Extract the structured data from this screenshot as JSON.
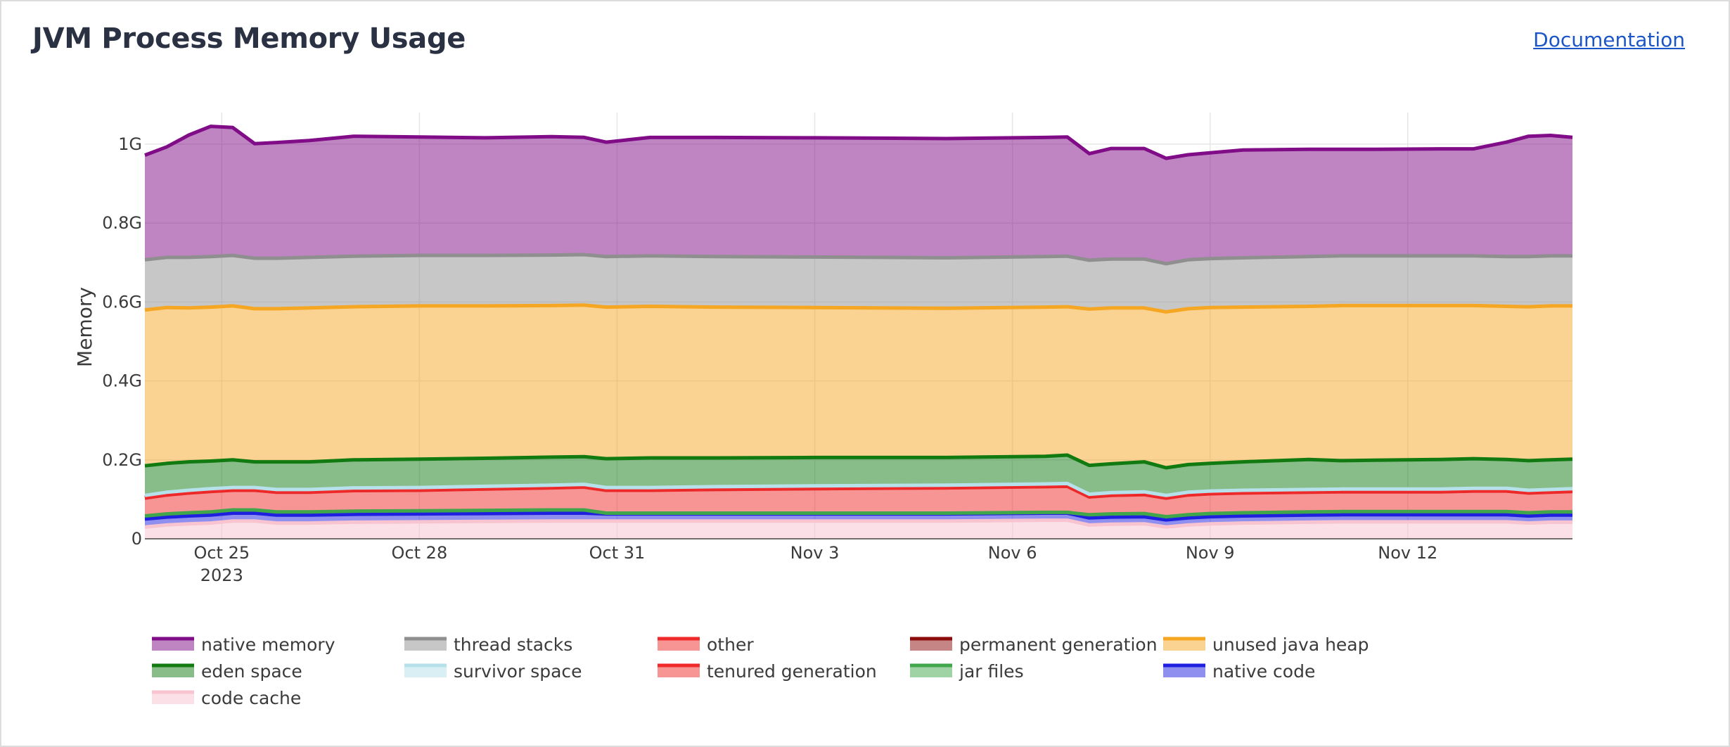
{
  "page": {
    "title": "JVM Process Memory Usage",
    "documentation_link": "Documentation"
  },
  "chart_data": {
    "type": "area",
    "stacked": true,
    "title": "",
    "xlabel": "",
    "ylabel": "Memory",
    "x_tick_labels": [
      {
        "date": "2023-10-25",
        "line1": "Oct 25",
        "line2": "2023"
      },
      {
        "date": "2023-10-28",
        "line1": "Oct 28",
        "line2": ""
      },
      {
        "date": "2023-10-31",
        "line1": "Oct 31",
        "line2": ""
      },
      {
        "date": "2023-11-03",
        "line1": "Nov 3",
        "line2": ""
      },
      {
        "date": "2023-11-06",
        "line1": "Nov 6",
        "line2": ""
      },
      {
        "date": "2023-11-09",
        "line1": "Nov 9",
        "line2": ""
      },
      {
        "date": "2023-11-12",
        "line1": "Nov 12",
        "line2": ""
      }
    ],
    "y_ticks": [
      {
        "value": 0,
        "label": "0"
      },
      {
        "value": 0.2,
        "label": "0.2G"
      },
      {
        "value": 0.4,
        "label": "0.4G"
      },
      {
        "value": 0.6,
        "label": "0.6G"
      },
      {
        "value": 0.8,
        "label": "0.8G"
      },
      {
        "value": 1.0,
        "label": "1G"
      }
    ],
    "xlim": [
      "2023-10-23 20:00",
      "2023-11-14 12:00"
    ],
    "ylim": [
      0,
      1.08
    ],
    "grid": true,
    "legend_position": "bottom",
    "x": [
      "2023-10-23 20:00",
      "2023-10-24 04:00",
      "2023-10-24 12:00",
      "2023-10-24 20:00",
      "2023-10-25 04:00",
      "2023-10-25 12:00",
      "2023-10-25 20:00",
      "2023-10-26 08:00",
      "2023-10-27 00:00",
      "2023-10-28 00:00",
      "2023-10-29 00:00",
      "2023-10-30 00:00",
      "2023-10-30 12:00",
      "2023-10-30 20:00",
      "2023-10-31 12:00",
      "2023-11-01 12:00",
      "2023-11-03 00:00",
      "2023-11-05 00:00",
      "2023-11-06 12:00",
      "2023-11-06 20:00",
      "2023-11-07 04:00",
      "2023-11-07 12:00",
      "2023-11-08 00:00",
      "2023-11-08 08:00",
      "2023-11-08 16:00",
      "2023-11-09 00:00",
      "2023-11-09 12:00",
      "2023-11-10 12:00",
      "2023-11-11 00:00",
      "2023-11-11 12:00",
      "2023-11-12 12:00",
      "2023-11-13 00:00",
      "2023-11-13 12:00",
      "2023-11-13 20:00",
      "2023-11-14 04:00",
      "2023-11-14 12:00"
    ],
    "series": [
      {
        "name": "code cache",
        "color": "#f8c4d0",
        "values": [
          0.03,
          0.035,
          0.038,
          0.04,
          0.045,
          0.045,
          0.04,
          0.04,
          0.042,
          0.043,
          0.044,
          0.045,
          0.045,
          0.045,
          0.045,
          0.045,
          0.045,
          0.045,
          0.047,
          0.047,
          0.035,
          0.037,
          0.038,
          0.03,
          0.035,
          0.038,
          0.04,
          0.042,
          0.043,
          0.043,
          0.043,
          0.043,
          0.043,
          0.04,
          0.042,
          0.042
        ]
      },
      {
        "name": "native code",
        "color": "#1f1fe0",
        "values": [
          0.02,
          0.02,
          0.02,
          0.02,
          0.02,
          0.02,
          0.02,
          0.02,
          0.02,
          0.02,
          0.02,
          0.02,
          0.02,
          0.018,
          0.018,
          0.018,
          0.018,
          0.018,
          0.018,
          0.018,
          0.018,
          0.018,
          0.018,
          0.018,
          0.018,
          0.018,
          0.018,
          0.018,
          0.018,
          0.018,
          0.018,
          0.018,
          0.018,
          0.018,
          0.018,
          0.018
        ]
      },
      {
        "name": "jar files",
        "color": "#3fa64b",
        "values": [
          0.008,
          0.008,
          0.008,
          0.008,
          0.008,
          0.008,
          0.008,
          0.008,
          0.008,
          0.008,
          0.008,
          0.008,
          0.008,
          0.002,
          0.002,
          0.002,
          0.002,
          0.002,
          0.002,
          0.002,
          0.008,
          0.008,
          0.008,
          0.008,
          0.008,
          0.008,
          0.008,
          0.008,
          0.008,
          0.008,
          0.008,
          0.008,
          0.008,
          0.008,
          0.008,
          0.008
        ]
      },
      {
        "name": "tenured generation",
        "color": "#f02a2a",
        "values": [
          0.045,
          0.048,
          0.05,
          0.052,
          0.05,
          0.05,
          0.05,
          0.05,
          0.052,
          0.052,
          0.054,
          0.056,
          0.058,
          0.058,
          0.058,
          0.06,
          0.062,
          0.064,
          0.065,
          0.066,
          0.045,
          0.047,
          0.048,
          0.047,
          0.05,
          0.05,
          0.05,
          0.05,
          0.05,
          0.05,
          0.05,
          0.052,
          0.052,
          0.05,
          0.05,
          0.052
        ]
      },
      {
        "name": "permanent generation",
        "color": "#8b0b0b",
        "values": [
          0.002,
          0.002,
          0.002,
          0.002,
          0.002,
          0.002,
          0.002,
          0.002,
          0.002,
          0.002,
          0.002,
          0.002,
          0.002,
          0.002,
          0.002,
          0.002,
          0.002,
          0.002,
          0.002,
          0.002,
          0.002,
          0.002,
          0.002,
          0.002,
          0.002,
          0.002,
          0.002,
          0.002,
          0.002,
          0.002,
          0.002,
          0.002,
          0.002,
          0.002,
          0.002,
          0.002
        ]
      },
      {
        "name": "other",
        "color": "#f02a2a",
        "values": [
          0,
          0,
          0,
          0,
          0,
          0,
          0,
          0,
          0,
          0,
          0,
          0,
          0,
          0,
          0,
          0,
          0,
          0,
          0,
          0,
          0,
          0,
          0,
          0,
          0,
          0,
          0,
          0,
          0,
          0,
          0,
          0,
          0,
          0,
          0,
          0
        ]
      },
      {
        "name": "survivor space",
        "color": "#b6e0ea",
        "values": [
          0.005,
          0.005,
          0.005,
          0.005,
          0.005,
          0.005,
          0.005,
          0.005,
          0.005,
          0.005,
          0.005,
          0.005,
          0.005,
          0.005,
          0.005,
          0.005,
          0.005,
          0.005,
          0.005,
          0.005,
          0.005,
          0.005,
          0.005,
          0.005,
          0.005,
          0.005,
          0.005,
          0.005,
          0.005,
          0.005,
          0.005,
          0.005,
          0.005,
          0.005,
          0.005,
          0.005
        ]
      },
      {
        "name": "eden space",
        "color": "#117a11",
        "values": [
          0.075,
          0.073,
          0.072,
          0.07,
          0.07,
          0.065,
          0.07,
          0.07,
          0.071,
          0.072,
          0.071,
          0.071,
          0.07,
          0.073,
          0.075,
          0.073,
          0.072,
          0.07,
          0.07,
          0.072,
          0.073,
          0.073,
          0.076,
          0.07,
          0.07,
          0.07,
          0.072,
          0.076,
          0.072,
          0.073,
          0.075,
          0.075,
          0.073,
          0.075,
          0.075,
          0.075
        ]
      },
      {
        "name": "unused java heap",
        "color": "#f5a623",
        "values": [
          0.395,
          0.395,
          0.39,
          0.39,
          0.39,
          0.388,
          0.388,
          0.39,
          0.388,
          0.388,
          0.386,
          0.384,
          0.384,
          0.384,
          0.384,
          0.382,
          0.38,
          0.378,
          0.378,
          0.376,
          0.396,
          0.395,
          0.39,
          0.395,
          0.395,
          0.395,
          0.392,
          0.388,
          0.393,
          0.392,
          0.39,
          0.388,
          0.388,
          0.39,
          0.39,
          0.388
        ]
      },
      {
        "name": "thread stacks",
        "color": "#8f8f8f",
        "values": [
          0.127,
          0.127,
          0.128,
          0.128,
          0.128,
          0.128,
          0.128,
          0.128,
          0.128,
          0.128,
          0.128,
          0.128,
          0.128,
          0.128,
          0.128,
          0.128,
          0.128,
          0.128,
          0.128,
          0.128,
          0.124,
          0.124,
          0.124,
          0.122,
          0.124,
          0.124,
          0.125,
          0.126,
          0.126,
          0.126,
          0.126,
          0.126,
          0.126,
          0.127,
          0.127,
          0.127
        ]
      },
      {
        "name": "native memory",
        "color": "#800c88",
        "values": [
          0.265,
          0.28,
          0.31,
          0.33,
          0.324,
          0.29,
          0.293,
          0.296,
          0.304,
          0.3,
          0.298,
          0.3,
          0.297,
          0.29,
          0.3,
          0.302,
          0.302,
          0.302,
          0.302,
          0.302,
          0.27,
          0.28,
          0.28,
          0.267,
          0.266,
          0.268,
          0.273,
          0.272,
          0.27,
          0.27,
          0.271,
          0.271,
          0.29,
          0.305,
          0.305,
          0.3
        ]
      }
    ]
  },
  "legend": [
    {
      "label": "native memory",
      "color": "#800c88"
    },
    {
      "label": "thread stacks",
      "color": "#8f8f8f"
    },
    {
      "label": "other",
      "color": "#f02a2a"
    },
    {
      "label": "permanent generation",
      "color": "#8b0b0b"
    },
    {
      "label": "unused java heap",
      "color": "#f5a623"
    },
    {
      "label": "eden space",
      "color": "#117a11"
    },
    {
      "label": "survivor space",
      "color": "#b6e0ea"
    },
    {
      "label": "tenured generation",
      "color": "#f02a2a"
    },
    {
      "label": "jar files",
      "color": "#3fa64b"
    },
    {
      "label": "native code",
      "color": "#1f1fe0"
    },
    {
      "label": "code cache",
      "color": "#f8c4d0"
    }
  ]
}
